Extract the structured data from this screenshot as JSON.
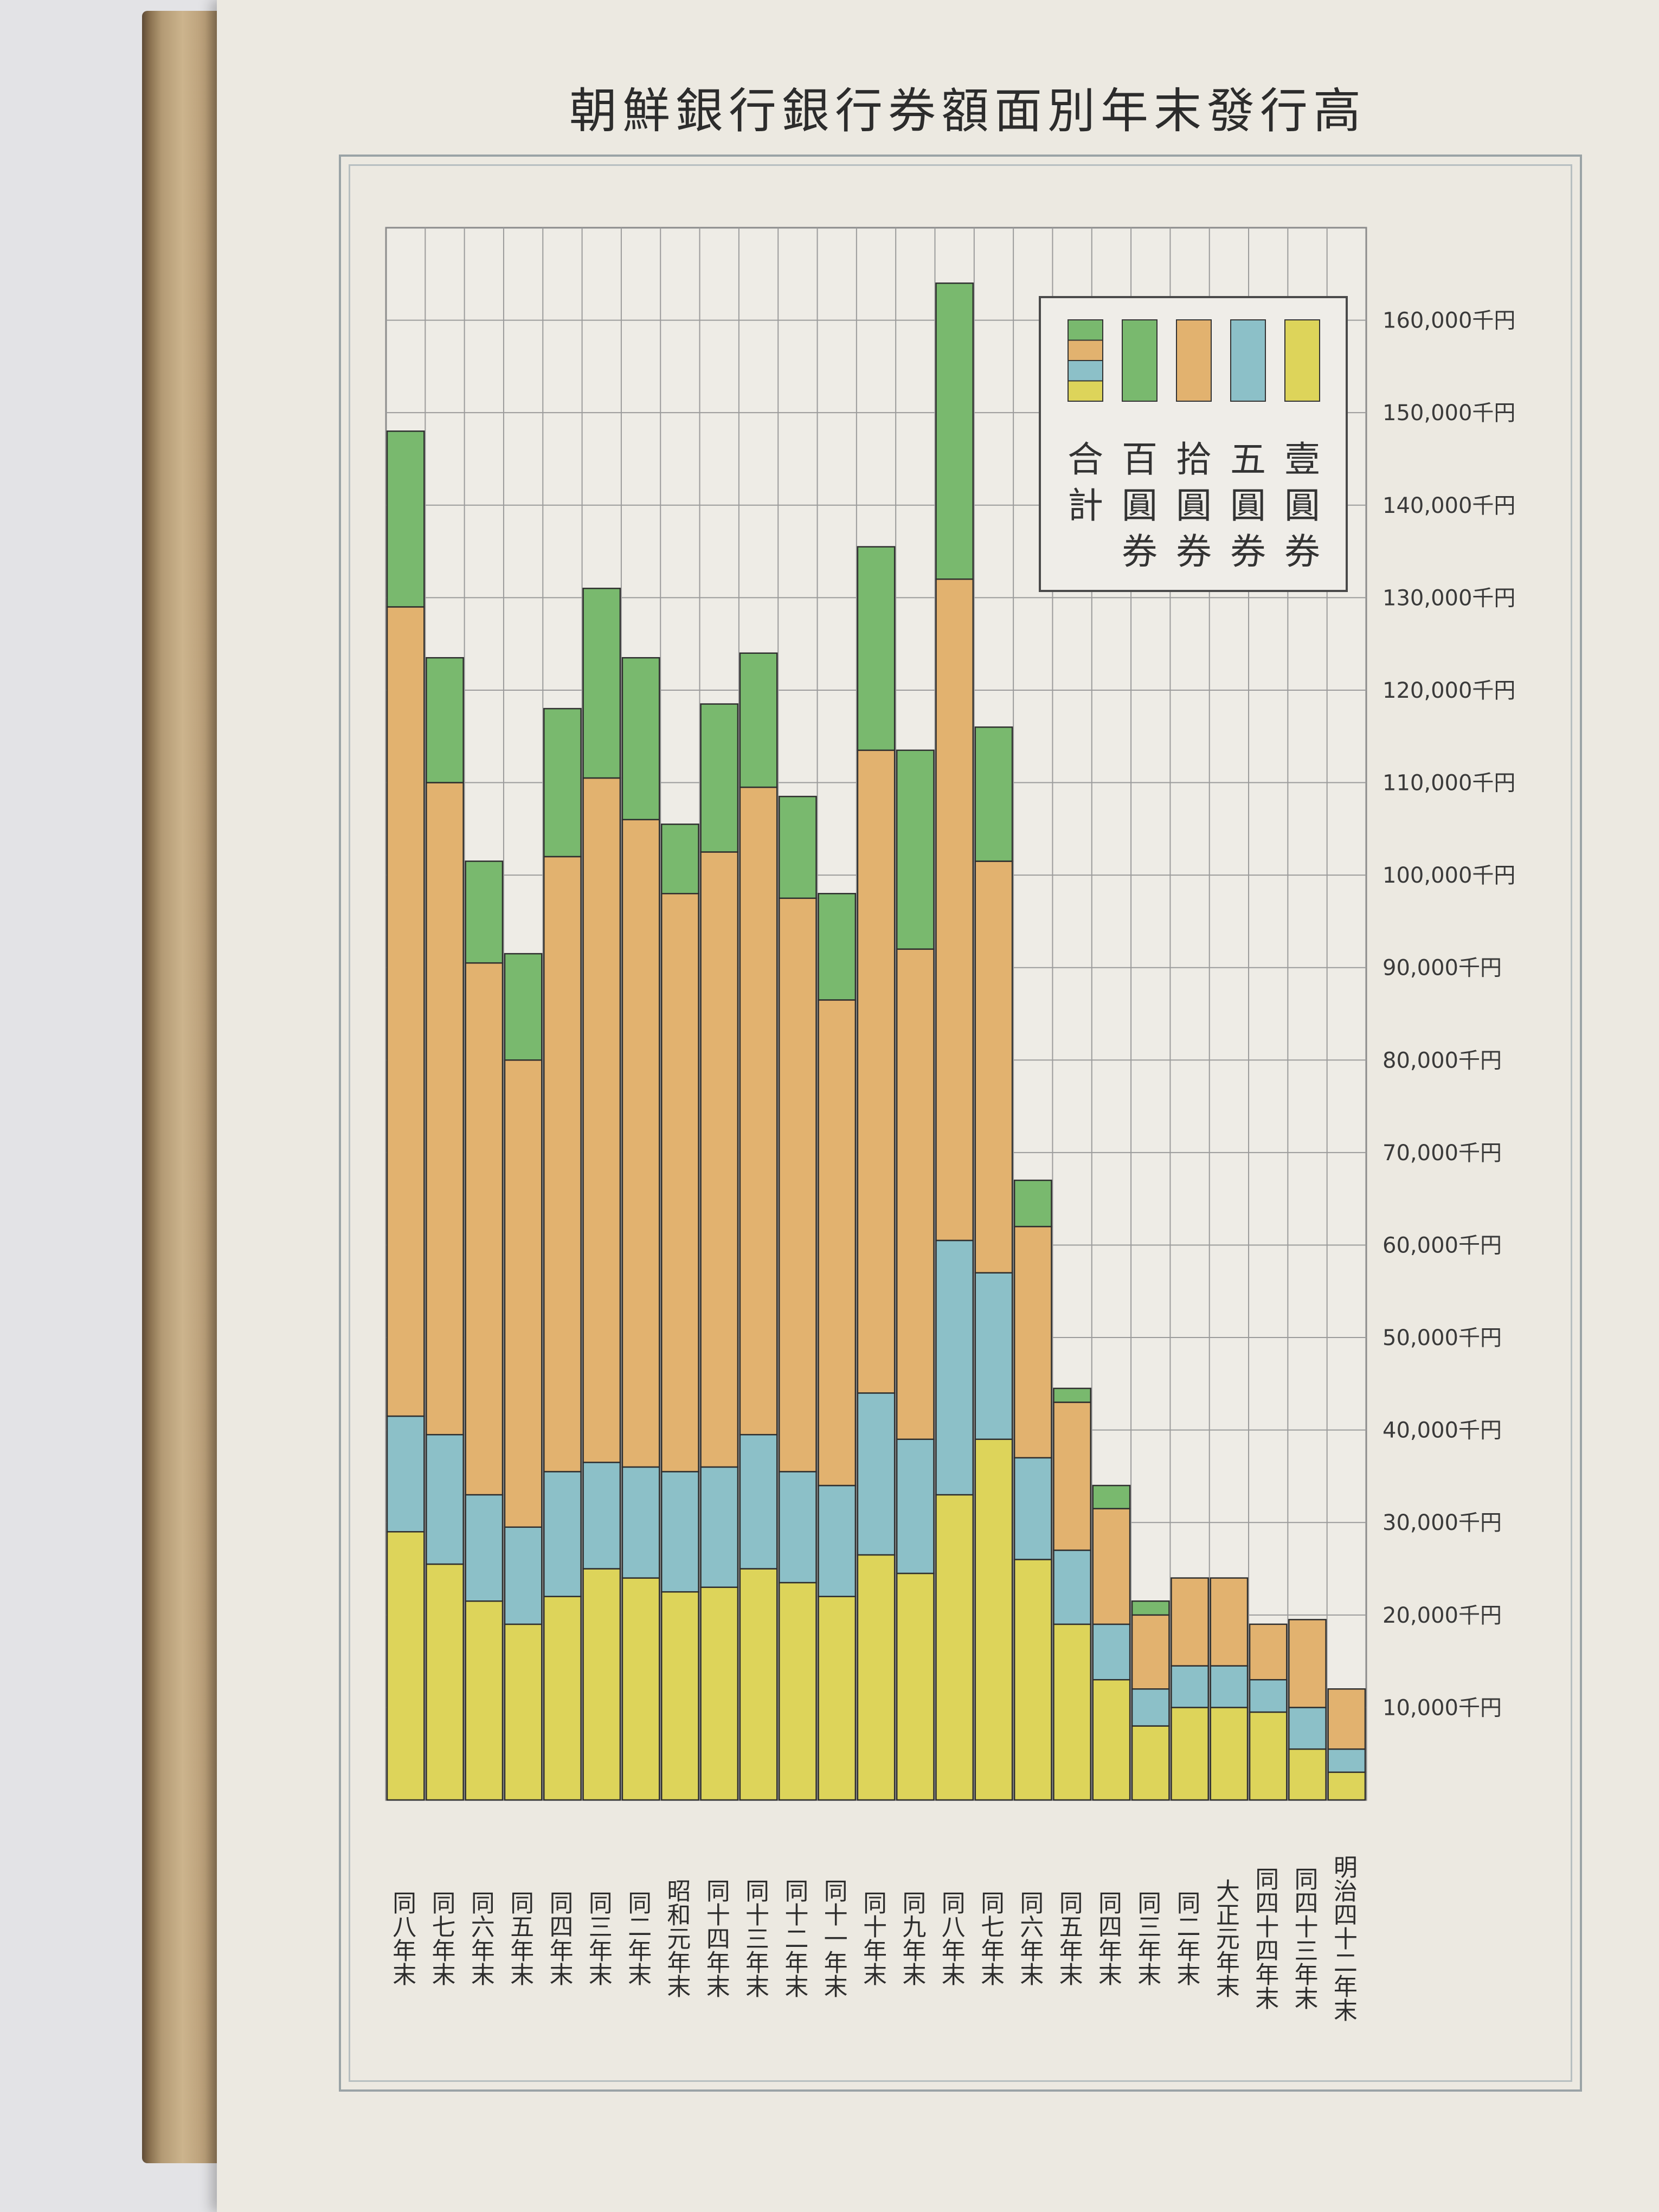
{
  "title": "朝鮮銀行銀行券額面別年末發行高",
  "chart_data": {
    "type": "bar",
    "stacked": true,
    "unit": "千円",
    "ylim": [
      0,
      170000
    ],
    "yticks": [
      {
        "value": 10000,
        "label": "10,000千円"
      },
      {
        "value": 20000,
        "label": "20,000千円"
      },
      {
        "value": 30000,
        "label": "30,000千円"
      },
      {
        "value": 40000,
        "label": "40,000千円"
      },
      {
        "value": 50000,
        "label": "50,000千円"
      },
      {
        "value": 60000,
        "label": "60,000千円"
      },
      {
        "value": 70000,
        "label": "70,000千円"
      },
      {
        "value": 80000,
        "label": "80,000千円"
      },
      {
        "value": 90000,
        "label": "90,000千円"
      },
      {
        "value": 100000,
        "label": "100,000千円"
      },
      {
        "value": 110000,
        "label": "110,000千円"
      },
      {
        "value": 120000,
        "label": "120,000千円"
      },
      {
        "value": 130000,
        "label": "130,000千円"
      },
      {
        "value": 140000,
        "label": "140,000千円"
      },
      {
        "value": 150000,
        "label": "150,000千円"
      },
      {
        "value": 160000,
        "label": "160,000千円"
      }
    ],
    "grid": true,
    "legend_position": "top-right",
    "legend": [
      {
        "key": "total",
        "label": "合計"
      },
      {
        "key": "yen100",
        "label": "百圓券",
        "color": "#79b96e"
      },
      {
        "key": "yen10",
        "label": "拾圓券",
        "color": "#e2b26f"
      },
      {
        "key": "yen5",
        "label": "五圓券",
        "color": "#8cc0c8"
      },
      {
        "key": "yen1",
        "label": "壹圓券",
        "color": "#ddd45a"
      }
    ],
    "categories": [
      {
        "era": "同",
        "year": "八",
        "suffix": "年末"
      },
      {
        "era": "同",
        "year": "七",
        "suffix": "年末"
      },
      {
        "era": "同",
        "year": "六",
        "suffix": "年末"
      },
      {
        "era": "同",
        "year": "五",
        "suffix": "年末"
      },
      {
        "era": "同",
        "year": "四",
        "suffix": "年末"
      },
      {
        "era": "同",
        "year": "三",
        "suffix": "年末"
      },
      {
        "era": "同",
        "year": "二",
        "suffix": "年末"
      },
      {
        "era": "昭和",
        "year": "元",
        "suffix": "年末"
      },
      {
        "era": "同",
        "year": "十四",
        "suffix": "年末"
      },
      {
        "era": "同",
        "year": "十三",
        "suffix": "年末"
      },
      {
        "era": "同",
        "year": "十二",
        "suffix": "年末"
      },
      {
        "era": "同",
        "year": "十一",
        "suffix": "年末"
      },
      {
        "era": "同",
        "year": "十",
        "suffix": "年末"
      },
      {
        "era": "同",
        "year": "九",
        "suffix": "年末"
      },
      {
        "era": "同",
        "year": "八",
        "suffix": "年末"
      },
      {
        "era": "同",
        "year": "七",
        "suffix": "年末"
      },
      {
        "era": "同",
        "year": "六",
        "suffix": "年末"
      },
      {
        "era": "同",
        "year": "五",
        "suffix": "年末"
      },
      {
        "era": "同",
        "year": "四",
        "suffix": "年末"
      },
      {
        "era": "同",
        "year": "三",
        "suffix": "年末"
      },
      {
        "era": "同",
        "year": "二",
        "suffix": "年末"
      },
      {
        "era": "大正",
        "year": "元",
        "suffix": "年末"
      },
      {
        "era": "同",
        "year": "四十四",
        "suffix": "年末"
      },
      {
        "era": "同",
        "year": "四十三",
        "suffix": "年末"
      },
      {
        "era": "明治",
        "year": "四十二",
        "suffix": "年末"
      }
    ],
    "series": [
      {
        "name": "壹圓券",
        "color": "#ddd45a",
        "values": [
          29000,
          25500,
          21500,
          19000,
          22000,
          25000,
          24000,
          22500,
          23000,
          25000,
          23500,
          22000,
          26500,
          24500,
          33000,
          39000,
          26000,
          19000,
          13000,
          8000,
          10000,
          10000,
          9500,
          5500,
          3000
        ]
      },
      {
        "name": "五圓券",
        "color": "#8cc0c8",
        "values": [
          12500,
          14000,
          11500,
          10500,
          13500,
          11500,
          12000,
          13000,
          13000,
          14500,
          12000,
          12000,
          17500,
          14500,
          27500,
          18000,
          11000,
          8000,
          6000,
          4000,
          4500,
          4500,
          3500,
          4500,
          2500
        ]
      },
      {
        "name": "拾圓券",
        "color": "#e2b26f",
        "values": [
          87500,
          70500,
          57500,
          50500,
          66500,
          74000,
          70000,
          62500,
          66500,
          70000,
          62000,
          52500,
          69500,
          53000,
          71500,
          44500,
          25000,
          16000,
          12500,
          8000,
          9500,
          9500,
          6000,
          9500,
          6500
        ]
      },
      {
        "name": "百圓券",
        "color": "#79b96e",
        "values": [
          19000,
          13500,
          11000,
          11500,
          16000,
          20500,
          17500,
          7500,
          16000,
          14500,
          11000,
          11500,
          22000,
          21500,
          32000,
          14500,
          5000,
          1500,
          2500,
          1500,
          0,
          0,
          0,
          0,
          0
        ]
      }
    ]
  }
}
